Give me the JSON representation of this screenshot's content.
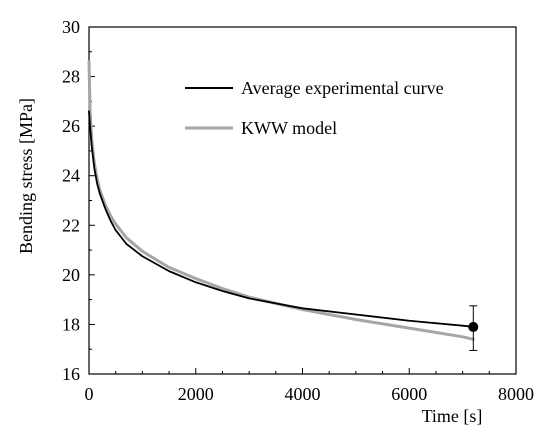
{
  "chart_data": {
    "type": "line",
    "xlabel": "Time [s]",
    "ylabel": "Bending stress [MPa]",
    "xlim": [
      0,
      8000
    ],
    "ylim": [
      16,
      30
    ],
    "xticks": [
      "0",
      "2000",
      "4000",
      "6000",
      "8000"
    ],
    "yticks": [
      "16",
      "18",
      "20",
      "22",
      "24",
      "26",
      "28",
      "30"
    ],
    "grid": false,
    "legend_position": "top-right",
    "series": [
      {
        "name": "Average experimental curve",
        "color": "#000000",
        "x": [
          0,
          20,
          50,
          100,
          150,
          200,
          300,
          400,
          500,
          700,
          1000,
          1500,
          2000,
          2500,
          3000,
          3500,
          4000,
          5000,
          6000,
          7000,
          7200
        ],
        "y": [
          26.6,
          26.0,
          25.2,
          24.3,
          23.7,
          23.3,
          22.7,
          22.2,
          21.8,
          21.25,
          20.75,
          20.15,
          19.7,
          19.35,
          19.05,
          18.85,
          18.65,
          18.4,
          18.15,
          17.95,
          17.9
        ]
      },
      {
        "name": "KWW model",
        "color": "#a6a6a6",
        "x": [
          0,
          20,
          50,
          100,
          150,
          200,
          300,
          400,
          500,
          700,
          1000,
          1500,
          2000,
          2500,
          3000,
          3500,
          4000,
          5000,
          6000,
          7000,
          7200
        ],
        "y": [
          28.6,
          26.6,
          25.5,
          24.5,
          23.9,
          23.45,
          22.85,
          22.4,
          22.05,
          21.5,
          20.95,
          20.3,
          19.85,
          19.45,
          19.1,
          18.85,
          18.6,
          18.2,
          17.85,
          17.5,
          17.4
        ]
      }
    ],
    "endpoint": {
      "x": 7200,
      "y": 17.9,
      "error_low": 16.95,
      "error_high": 18.75
    }
  }
}
